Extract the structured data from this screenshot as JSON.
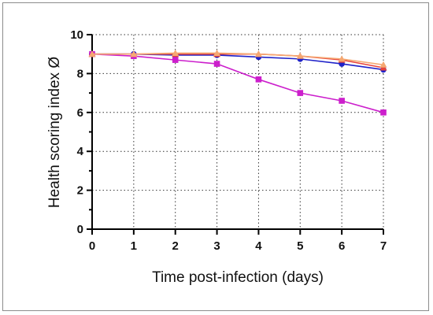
{
  "chart_data": {
    "type": "line",
    "xlabel": "Time post-infection (days)",
    "ylabel": "Health scoring index  Ø",
    "xlim": [
      0,
      7
    ],
    "ylim": [
      0,
      10
    ],
    "x_ticks": [
      0,
      1,
      2,
      3,
      4,
      5,
      6,
      7
    ],
    "y_ticks": [
      0,
      2,
      4,
      6,
      8,
      10
    ],
    "grid": true,
    "grid_style": "dotted",
    "x": [
      0,
      1,
      2,
      3,
      4,
      5,
      6,
      7
    ],
    "series": [
      {
        "color": "#1f22c9",
        "marker": "circle",
        "values": [
          9.0,
          9.0,
          8.95,
          8.95,
          8.85,
          8.75,
          8.5,
          8.2
        ]
      },
      {
        "color": "#cc1fcc",
        "marker": "square",
        "values": [
          9.0,
          8.9,
          8.7,
          8.5,
          7.7,
          7.0,
          6.6,
          6.0
        ]
      },
      {
        "color": "#e8433a",
        "marker": "triangle",
        "values": [
          9.0,
          9.0,
          9.0,
          9.0,
          9.0,
          8.9,
          8.7,
          8.3
        ]
      },
      {
        "color": "#f5a872",
        "marker": "triangle",
        "values": [
          9.0,
          9.0,
          9.05,
          9.05,
          9.0,
          8.9,
          8.75,
          8.45
        ]
      }
    ]
  }
}
